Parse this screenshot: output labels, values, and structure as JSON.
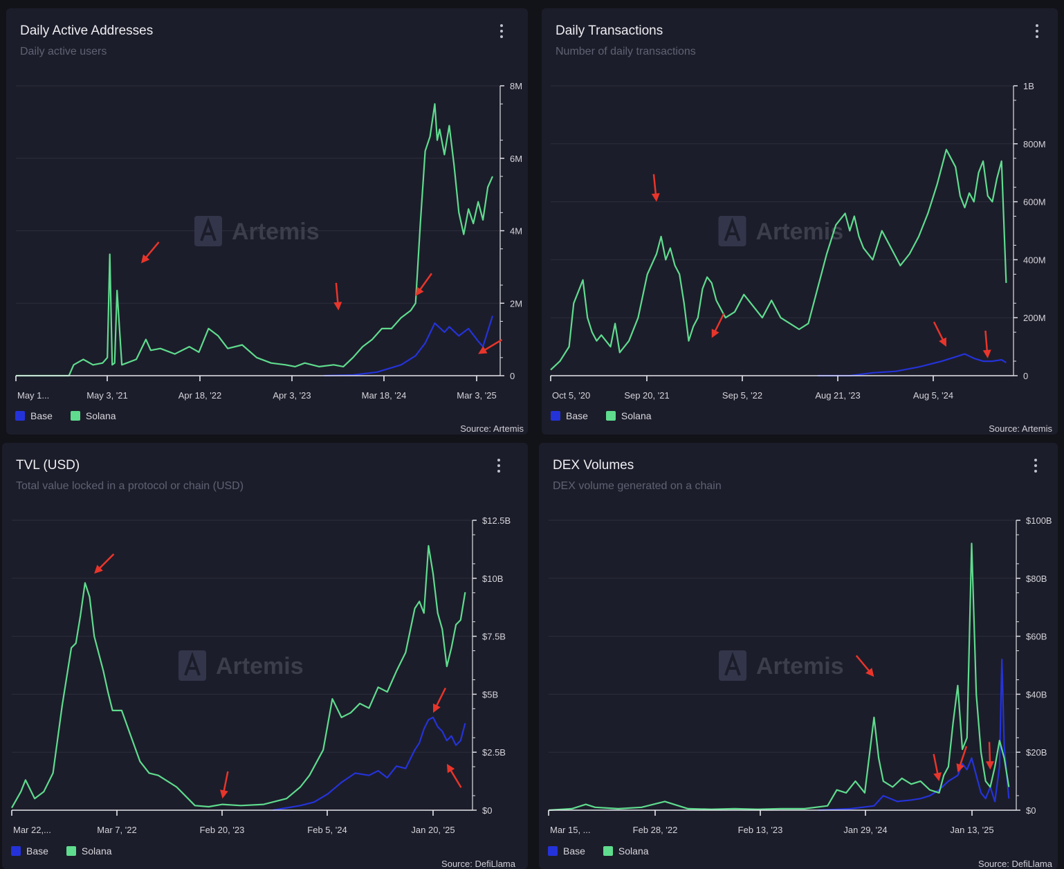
{
  "colors": {
    "base": "#2433d9",
    "solana": "#5fdc8e",
    "arrow": "#e8352b",
    "grid": "#2c2e3d",
    "background": "#1c1d2a"
  },
  "watermark": "Artemis",
  "panels": [
    {
      "title": "Daily Active Addresses",
      "subtitle": "Daily active users",
      "source": "Source: Artemis",
      "legend": [
        {
          "label": "Base",
          "color": "#2433d9"
        },
        {
          "label": "Solana",
          "color": "#5fdc8e"
        }
      ]
    },
    {
      "title": "Daily Transactions",
      "subtitle": "Number of daily transactions",
      "source": "Source: Artemis",
      "legend": [
        {
          "label": "Base",
          "color": "#2433d9"
        },
        {
          "label": "Solana",
          "color": "#5fdc8e"
        }
      ]
    },
    {
      "title": "TVL (USD)",
      "subtitle": "Total value locked in a protocol or chain (USD)",
      "source": "Source: DefiLlama",
      "legend": [
        {
          "label": "Base",
          "color": "#2433d9"
        },
        {
          "label": "Solana",
          "color": "#5fdc8e"
        }
      ]
    },
    {
      "title": "DEX Volumes",
      "subtitle": "DEX volume generated on a chain",
      "source": "Source: DefiLlama",
      "legend": [
        {
          "label": "Base",
          "color": "#2433d9"
        },
        {
          "label": "Solana",
          "color": "#5fdc8e"
        }
      ]
    }
  ],
  "chart_data": [
    {
      "type": "line",
      "title": "Daily Active Addresses",
      "subtitle": "Daily active users",
      "x_tick_labels": [
        "May 1...",
        "May 3, '21",
        "Apr 18, '22",
        "Apr 3, '23",
        "Mar 18, '24",
        "Mar 3, '25"
      ],
      "y_tick_labels": [
        "0",
        "2M",
        "4M",
        "6M",
        "8M"
      ],
      "ylim": [
        0,
        8000000
      ],
      "x_range": [
        0,
        1
      ],
      "grid": true,
      "legend_position": "bottom-left",
      "arrows": [
        [
          0.26,
          3.1
        ],
        [
          0.83,
          2.2
        ],
        [
          0.67,
          1.8
        ],
        [
          0.96,
          0.6
        ]
      ],
      "series": [
        {
          "name": "Base",
          "color": "#2433d9",
          "x": [
            0.64,
            0.7,
            0.75,
            0.8,
            0.83,
            0.85,
            0.87,
            0.89,
            0.9,
            0.92,
            0.94,
            0.96,
            0.97,
            0.99
          ],
          "y": [
            0,
            0.02,
            0.1,
            0.3,
            0.55,
            0.9,
            1.45,
            1.2,
            1.35,
            1.1,
            1.3,
            0.95,
            0.8,
            1.65
          ]
        },
        {
          "name": "Solana",
          "color": "#5fdc8e",
          "x": [
            0.0,
            0.11,
            0.12,
            0.14,
            0.16,
            0.18,
            0.19,
            0.195,
            0.2,
            0.205,
            0.21,
            0.22,
            0.23,
            0.25,
            0.27,
            0.28,
            0.3,
            0.33,
            0.36,
            0.38,
            0.4,
            0.42,
            0.44,
            0.47,
            0.5,
            0.53,
            0.56,
            0.58,
            0.6,
            0.63,
            0.66,
            0.68,
            0.7,
            0.72,
            0.74,
            0.76,
            0.78,
            0.8,
            0.82,
            0.83,
            0.84,
            0.85,
            0.86,
            0.87,
            0.875,
            0.88,
            0.89,
            0.9,
            0.91,
            0.92,
            0.93,
            0.94,
            0.95,
            0.96,
            0.97,
            0.98,
            0.99
          ],
          "y": [
            0,
            0,
            0.3,
            0.45,
            0.3,
            0.35,
            0.5,
            3.35,
            0.3,
            0.35,
            2.35,
            0.3,
            0.35,
            0.45,
            1.0,
            0.7,
            0.75,
            0.6,
            0.8,
            0.65,
            1.3,
            1.1,
            0.75,
            0.85,
            0.5,
            0.35,
            0.3,
            0.25,
            0.35,
            0.25,
            0.3,
            0.25,
            0.5,
            0.8,
            1.0,
            1.3,
            1.3,
            1.6,
            1.8,
            2.0,
            4.2,
            6.2,
            6.6,
            7.5,
            6.5,
            6.8,
            6.1,
            6.9,
            5.8,
            4.5,
            3.9,
            4.6,
            4.2,
            4.8,
            4.3,
            5.2,
            5.5
          ]
        }
      ]
    },
    {
      "type": "line",
      "title": "Daily Transactions",
      "subtitle": "Number of daily transactions",
      "x_tick_labels": [
        "Oct 5, '20",
        "Sep 20, '21",
        "Sep 5, '22",
        "Aug 21, '23",
        "Aug 5, '24"
      ],
      "y_tick_labels": [
        "0",
        "200M",
        "400M",
        "600M",
        "800M",
        "1B"
      ],
      "ylim": [
        0,
        1000000000
      ],
      "x_range": [
        0,
        1
      ],
      "grid": true,
      "legend_position": "bottom-left",
      "arrows": [
        [
          0.23,
          0.6
        ],
        [
          0.35,
          0.13
        ],
        [
          0.86,
          0.1
        ],
        [
          0.95,
          0.06
        ]
      ],
      "series": [
        {
          "name": "Base",
          "color": "#2433d9",
          "x": [
            0.58,
            0.65,
            0.7,
            0.75,
            0.8,
            0.85,
            0.88,
            0.9,
            0.92,
            0.94,
            0.96,
            0.98,
            0.99
          ],
          "y": [
            0,
            0.0,
            0.01,
            0.015,
            0.03,
            0.05,
            0.065,
            0.075,
            0.06,
            0.05,
            0.05,
            0.055,
            0.045
          ]
        },
        {
          "name": "Solana",
          "color": "#5fdc8e",
          "x": [
            0.0,
            0.02,
            0.04,
            0.05,
            0.07,
            0.08,
            0.09,
            0.1,
            0.11,
            0.13,
            0.14,
            0.15,
            0.17,
            0.19,
            0.21,
            0.23,
            0.24,
            0.25,
            0.26,
            0.27,
            0.28,
            0.29,
            0.3,
            0.31,
            0.32,
            0.33,
            0.34,
            0.35,
            0.36,
            0.38,
            0.4,
            0.42,
            0.44,
            0.46,
            0.48,
            0.5,
            0.52,
            0.54,
            0.56,
            0.58,
            0.6,
            0.62,
            0.64,
            0.65,
            0.66,
            0.67,
            0.68,
            0.7,
            0.72,
            0.74,
            0.76,
            0.78,
            0.8,
            0.82,
            0.84,
            0.86,
            0.88,
            0.89,
            0.9,
            0.91,
            0.92,
            0.93,
            0.94,
            0.95,
            0.96,
            0.97,
            0.98,
            0.99
          ],
          "y": [
            0.02,
            0.05,
            0.1,
            0.25,
            0.33,
            0.2,
            0.15,
            0.12,
            0.14,
            0.1,
            0.18,
            0.08,
            0.12,
            0.2,
            0.35,
            0.42,
            0.48,
            0.4,
            0.44,
            0.38,
            0.35,
            0.25,
            0.12,
            0.17,
            0.2,
            0.3,
            0.34,
            0.32,
            0.26,
            0.2,
            0.22,
            0.28,
            0.24,
            0.2,
            0.26,
            0.2,
            0.18,
            0.16,
            0.18,
            0.3,
            0.42,
            0.52,
            0.56,
            0.5,
            0.55,
            0.48,
            0.44,
            0.4,
            0.5,
            0.44,
            0.38,
            0.42,
            0.48,
            0.56,
            0.66,
            0.78,
            0.72,
            0.62,
            0.58,
            0.63,
            0.6,
            0.7,
            0.74,
            0.62,
            0.6,
            0.68,
            0.74,
            0.32
          ]
        }
      ]
    },
    {
      "type": "line",
      "title": "TVL (USD)",
      "subtitle": "Total value locked in a protocol or chain (USD)",
      "x_tick_labels": [
        "Mar 22,...",
        "Mar 7, '22",
        "Feb 20, '23",
        "Feb 5, '24",
        "Jan 20, '25"
      ],
      "y_tick_labels": [
        "$0",
        "$2.5B",
        "$5B",
        "$7.5B",
        "$10B",
        "$12.5B"
      ],
      "ylim": [
        0,
        12500000000
      ],
      "x_range": [
        0,
        1
      ],
      "grid": true,
      "legend_position": "bottom-left",
      "arrows": [
        [
          0.18,
          10.2
        ],
        [
          0.46,
          0.5
        ],
        [
          0.92,
          4.2
        ],
        [
          0.95,
          2.0
        ]
      ],
      "series": [
        {
          "name": "Base",
          "color": "#2433d9",
          "x": [
            0.57,
            0.63,
            0.66,
            0.69,
            0.72,
            0.75,
            0.78,
            0.8,
            0.82,
            0.84,
            0.86,
            0.88,
            0.89,
            0.9,
            0.91,
            0.92,
            0.93,
            0.94,
            0.95,
            0.96,
            0.97,
            0.98,
            0.99
          ],
          "y": [
            0,
            0.2,
            0.35,
            0.7,
            1.2,
            1.6,
            1.5,
            1.7,
            1.4,
            1.9,
            1.8,
            2.6,
            2.9,
            3.5,
            3.9,
            4.0,
            3.6,
            3.4,
            3.0,
            3.2,
            2.8,
            3.0,
            3.75
          ]
        },
        {
          "name": "Solana",
          "color": "#5fdc8e",
          "x": [
            0.0,
            0.02,
            0.03,
            0.05,
            0.07,
            0.09,
            0.11,
            0.13,
            0.14,
            0.15,
            0.16,
            0.17,
            0.18,
            0.2,
            0.21,
            0.22,
            0.24,
            0.26,
            0.28,
            0.3,
            0.32,
            0.36,
            0.4,
            0.43,
            0.46,
            0.5,
            0.55,
            0.6,
            0.63,
            0.65,
            0.68,
            0.7,
            0.72,
            0.74,
            0.76,
            0.78,
            0.8,
            0.82,
            0.84,
            0.86,
            0.88,
            0.89,
            0.9,
            0.91,
            0.92,
            0.93,
            0.94,
            0.95,
            0.96,
            0.97,
            0.98,
            0.99
          ],
          "y": [
            0.1,
            0.8,
            1.3,
            0.5,
            0.8,
            1.6,
            4.5,
            7.0,
            7.2,
            8.4,
            9.8,
            9.2,
            7.5,
            6.0,
            5.1,
            4.3,
            4.3,
            3.2,
            2.1,
            1.6,
            1.5,
            1.0,
            0.2,
            0.15,
            0.25,
            0.2,
            0.25,
            0.5,
            1.0,
            1.5,
            2.6,
            4.8,
            4.0,
            4.2,
            4.6,
            4.4,
            5.3,
            5.1,
            6.0,
            6.8,
            8.7,
            9.0,
            8.5,
            11.4,
            10.2,
            8.5,
            7.8,
            6.2,
            7.0,
            8.0,
            8.2,
            9.4
          ]
        }
      ]
    },
    {
      "type": "line",
      "title": "DEX Volumes",
      "subtitle": "DEX volume generated on a chain",
      "x_tick_labels": [
        "Mar 15, ...",
        "Feb 28, '22",
        "Feb 13, '23",
        "Jan 29, '24",
        "Jan 13, '25"
      ],
      "y_tick_labels": [
        "$0",
        "$20B",
        "$40B",
        "$60B",
        "$80B",
        "$100B"
      ],
      "ylim": [
        0,
        100000000000
      ],
      "x_range": [
        0,
        1
      ],
      "grid": true,
      "legend_position": "bottom-left",
      "arrows": [
        [
          0.7,
          46
        ],
        [
          0.84,
          10
        ],
        [
          0.88,
          13
        ],
        [
          0.95,
          14
        ]
      ],
      "series": [
        {
          "name": "Base",
          "color": "#2433d9",
          "x": [
            0.58,
            0.65,
            0.7,
            0.72,
            0.75,
            0.78,
            0.8,
            0.82,
            0.84,
            0.86,
            0.88,
            0.89,
            0.9,
            0.91,
            0.92,
            0.93,
            0.94,
            0.95,
            0.96,
            0.97,
            0.975,
            0.98,
            0.99
          ],
          "y": [
            0,
            0.5,
            1.5,
            5,
            3,
            3.5,
            4,
            5,
            7,
            10,
            12,
            16,
            14,
            18,
            12,
            6,
            4,
            8,
            3,
            15,
            52,
            22,
            4
          ]
        },
        {
          "name": "Solana",
          "color": "#5fdc8e",
          "x": [
            0.0,
            0.05,
            0.08,
            0.1,
            0.15,
            0.2,
            0.25,
            0.3,
            0.35,
            0.4,
            0.45,
            0.5,
            0.55,
            0.6,
            0.62,
            0.64,
            0.66,
            0.68,
            0.7,
            0.71,
            0.72,
            0.74,
            0.76,
            0.78,
            0.8,
            0.82,
            0.84,
            0.85,
            0.86,
            0.87,
            0.88,
            0.89,
            0.9,
            0.91,
            0.92,
            0.93,
            0.94,
            0.95,
            0.96,
            0.97,
            0.98,
            0.99
          ],
          "y": [
            0,
            0.5,
            2,
            1,
            0.5,
            1,
            3,
            0.5,
            0.3,
            0.5,
            0.3,
            0.5,
            0.5,
            1.5,
            7,
            6,
            10,
            6,
            32,
            18,
            10,
            8,
            11,
            9,
            10,
            7,
            6,
            12,
            15,
            30,
            43,
            21,
            25,
            92,
            40,
            20,
            10,
            8,
            15,
            24,
            18,
            8
          ]
        }
      ]
    }
  ]
}
